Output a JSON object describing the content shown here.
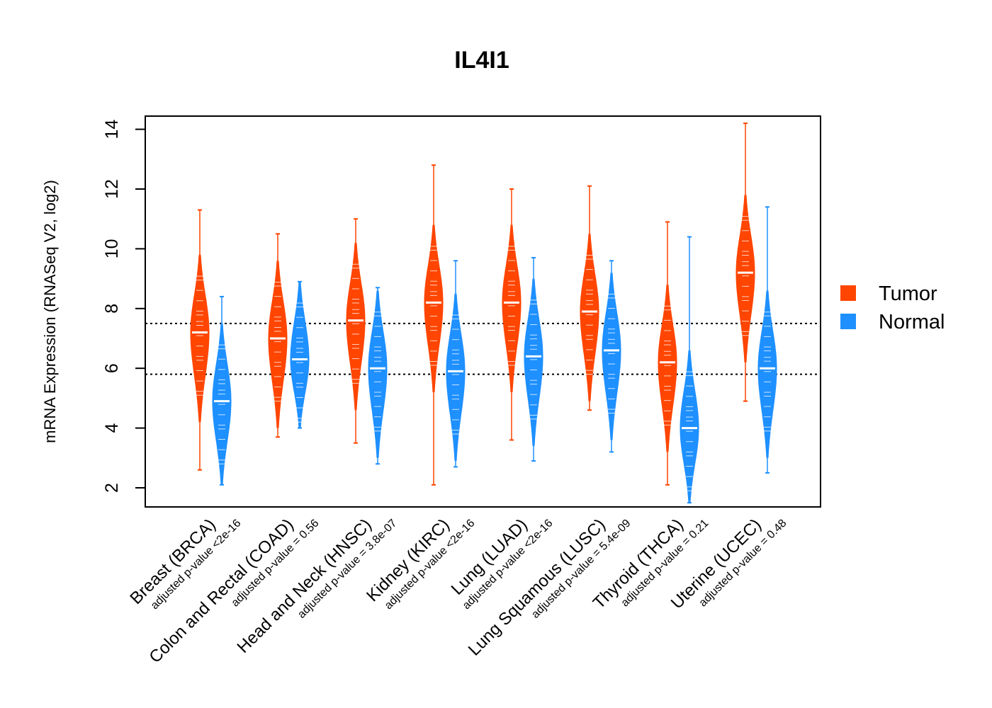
{
  "chart_data": {
    "type": "violin",
    "title": "IL4I1",
    "ylabel": "mRNA Expression (RNASeq V2, log2)",
    "xlabel": "",
    "ylim": [
      1.4,
      14.5
    ],
    "yticks": [
      "2",
      "4",
      "6",
      "8",
      "10",
      "12",
      "14"
    ],
    "reference_lines": [
      5.8,
      7.5
    ],
    "legend": {
      "position": "right",
      "items": [
        {
          "label": "Tumor",
          "color": "#FF4500"
        },
        {
          "label": "Normal",
          "color": "#1E90FF"
        }
      ]
    },
    "categories": [
      {
        "label": "Breast (BRCA)",
        "pvalue": "adjusted p-value <2e-16",
        "tumor": {
          "min": 2.6,
          "max": 11.3,
          "median": 7.2
        },
        "normal": {
          "min": 2.1,
          "max": 8.4,
          "median": 4.9
        }
      },
      {
        "label": "Colon and Rectal (COAD)",
        "pvalue": "adjusted p-value = 0.56",
        "tumor": {
          "min": 3.7,
          "max": 10.5,
          "median": 7.0
        },
        "normal": {
          "min": 4.0,
          "max": 8.9,
          "median": 6.3
        }
      },
      {
        "label": "Head and Neck (HNSC)",
        "pvalue": "adjusted p-value = 3.8e-07",
        "tumor": {
          "min": 3.5,
          "max": 11.0,
          "median": 7.6
        },
        "normal": {
          "min": 2.8,
          "max": 8.7,
          "median": 6.0
        }
      },
      {
        "label": "Kidney (KIRC)",
        "pvalue": "adjusted p-value <2e-16",
        "tumor": {
          "min": 2.1,
          "max": 12.8,
          "median": 8.2
        },
        "normal": {
          "min": 2.7,
          "max": 9.6,
          "median": 5.9
        }
      },
      {
        "label": "Lung (LUAD)",
        "pvalue": "adjusted p-value <2e-16",
        "tumor": {
          "min": 3.6,
          "max": 12.0,
          "median": 8.2
        },
        "normal": {
          "min": 2.9,
          "max": 9.7,
          "median": 6.4
        }
      },
      {
        "label": "Lung Squamous (LUSC)",
        "pvalue": "adjusted p-value = 5.4e-09",
        "tumor": {
          "min": 4.6,
          "max": 12.1,
          "median": 7.9
        },
        "normal": {
          "min": 3.2,
          "max": 9.6,
          "median": 6.6
        }
      },
      {
        "label": "Thyroid (THCA)",
        "pvalue": "adjusted p-value = 0.21",
        "tumor": {
          "min": 2.1,
          "max": 10.9,
          "median": 6.2
        },
        "normal": {
          "min": 1.5,
          "max": 10.4,
          "median": 4.0
        }
      },
      {
        "label": "Uterine (UCEC)",
        "pvalue": "adjusted p-value = 0.48",
        "tumor": {
          "min": 4.9,
          "max": 14.2,
          "median": 9.2
        },
        "normal": {
          "min": 2.5,
          "max": 11.4,
          "median": 6.0
        }
      }
    ]
  }
}
